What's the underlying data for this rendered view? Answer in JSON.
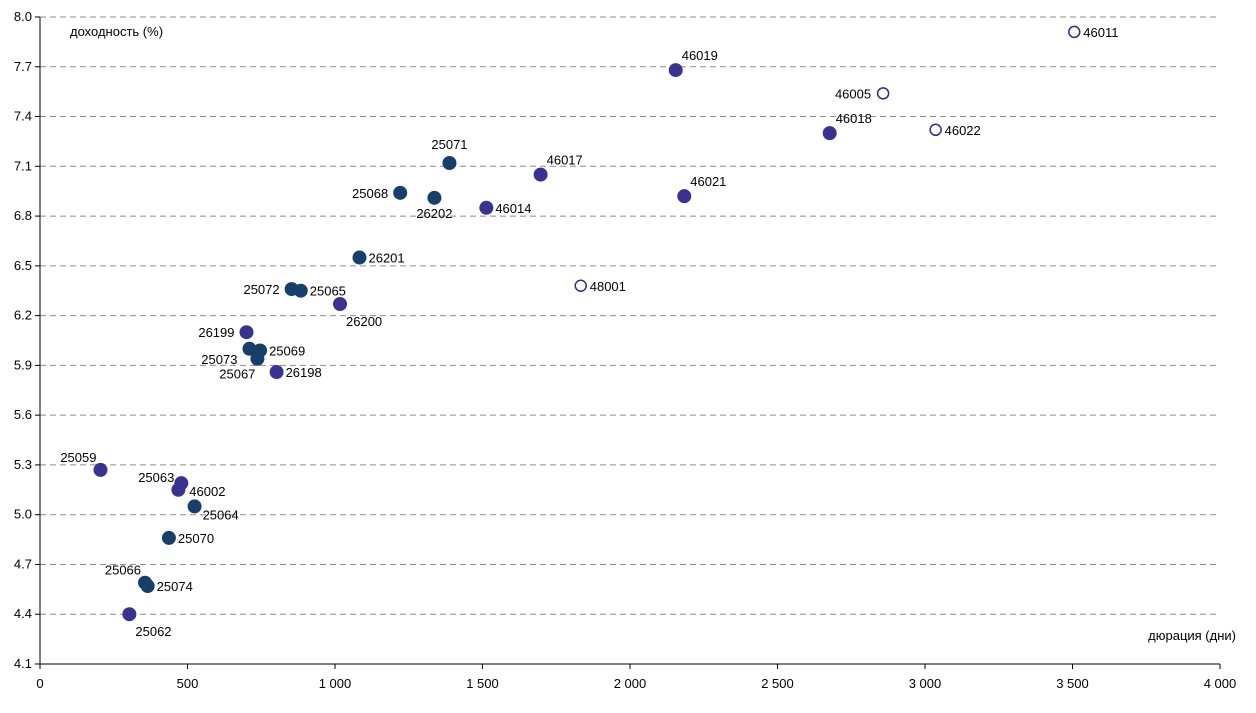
{
  "chart_data": {
    "type": "scatter",
    "title": "",
    "xlabel": "дюрация (дни)",
    "ylabel": "доходность (%)",
    "xlim": [
      0,
      4000
    ],
    "ylim": [
      4.1,
      8.0
    ],
    "x_ticks": [
      0,
      500,
      1000,
      1500,
      2000,
      2500,
      3000,
      3500,
      4000
    ],
    "x_tick_labels": [
      "0",
      "500",
      "1 000",
      "1 500",
      "2 000",
      "2 500",
      "3 000",
      "3 500",
      "4 000"
    ],
    "y_ticks": [
      4.1,
      4.4,
      4.7,
      5.0,
      5.3,
      5.6,
      5.9,
      6.2,
      6.5,
      6.8,
      7.1,
      7.4,
      7.7,
      8.0
    ],
    "y_tick_labels": [
      "4.1",
      "4.4",
      "4.7",
      "5.0",
      "5.3",
      "5.6",
      "5.9",
      "6.2",
      "6.5",
      "6.8",
      "7.1",
      "7.4",
      "7.7",
      "8.0"
    ],
    "grid": true,
    "colors": {
      "navy": "#173f6b",
      "purple": "#3a3290",
      "open": "#2b2f8c"
    },
    "points": [
      {
        "label": "25059",
        "x": 205,
        "y": 5.27,
        "style": "purple",
        "pos": "above-left"
      },
      {
        "label": "25062",
        "x": 303,
        "y": 4.4,
        "style": "purple",
        "pos": "below-right"
      },
      {
        "label": "25063",
        "x": 469,
        "y": 5.15,
        "style": "purple",
        "pos": "above-left"
      },
      {
        "label": "46002",
        "x": 479,
        "y": 5.19,
        "style": "purple",
        "pos": "right-below"
      },
      {
        "label": "25064",
        "x": 524,
        "y": 5.05,
        "style": "navy",
        "pos": "right-below"
      },
      {
        "label": "25070",
        "x": 437,
        "y": 4.86,
        "style": "navy",
        "pos": "right"
      },
      {
        "label": "25066",
        "x": 356,
        "y": 4.59,
        "style": "navy",
        "pos": "above-left"
      },
      {
        "label": "25074",
        "x": 365,
        "y": 4.57,
        "style": "navy",
        "pos": "right"
      },
      {
        "label": "26199",
        "x": 700,
        "y": 6.1,
        "style": "purple",
        "pos": "left"
      },
      {
        "label": "25073",
        "x": 710,
        "y": 6.0,
        "style": "navy",
        "pos": "left-below"
      },
      {
        "label": "25069",
        "x": 746,
        "y": 5.99,
        "style": "navy",
        "pos": "right"
      },
      {
        "label": "25067",
        "x": 737,
        "y": 5.94,
        "style": "navy",
        "pos": "below-left"
      },
      {
        "label": "26198",
        "x": 802,
        "y": 5.86,
        "style": "purple",
        "pos": "right"
      },
      {
        "label": "25072",
        "x": 853,
        "y": 6.36,
        "style": "navy",
        "pos": "left"
      },
      {
        "label": "25065",
        "x": 884,
        "y": 6.35,
        "style": "navy",
        "pos": "right"
      },
      {
        "label": "26200",
        "x": 1017,
        "y": 6.27,
        "style": "purple",
        "pos": "below-right"
      },
      {
        "label": "26201",
        "x": 1083,
        "y": 6.55,
        "style": "navy",
        "pos": "right"
      },
      {
        "label": "25068",
        "x": 1221,
        "y": 6.94,
        "style": "navy",
        "pos": "left"
      },
      {
        "label": "26202",
        "x": 1337,
        "y": 6.91,
        "style": "navy",
        "pos": "below"
      },
      {
        "label": "25071",
        "x": 1388,
        "y": 7.12,
        "style": "navy",
        "pos": "above"
      },
      {
        "label": "46014",
        "x": 1513,
        "y": 6.85,
        "style": "purple",
        "pos": "right"
      },
      {
        "label": "46017",
        "x": 1697,
        "y": 7.05,
        "style": "purple",
        "pos": "above-right"
      },
      {
        "label": "48001",
        "x": 1833,
        "y": 6.38,
        "style": "open",
        "pos": "right"
      },
      {
        "label": "46019",
        "x": 2155,
        "y": 7.68,
        "style": "purple",
        "pos": "above-right"
      },
      {
        "label": "46021",
        "x": 2184,
        "y": 6.92,
        "style": "purple",
        "pos": "above-right"
      },
      {
        "label": "46018",
        "x": 2677,
        "y": 7.3,
        "style": "purple",
        "pos": "above-right"
      },
      {
        "label": "46005",
        "x": 2858,
        "y": 7.54,
        "style": "open",
        "pos": "left"
      },
      {
        "label": "46022",
        "x": 3036,
        "y": 7.32,
        "style": "open",
        "pos": "right"
      },
      {
        "label": "46011",
        "x": 3506,
        "y": 7.91,
        "style": "open",
        "pos": "right"
      }
    ]
  }
}
